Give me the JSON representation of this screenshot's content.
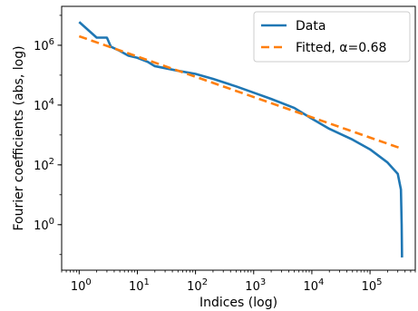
{
  "chart_data": {
    "type": "line",
    "xlabel": "Indices (log)",
    "ylabel": "Fourier coefficients (abs, log)",
    "xscale": "log",
    "yscale": "log",
    "xlim": [
      0.5,
      600000
    ],
    "ylim": [
      0.03,
      20000000
    ],
    "grid": false,
    "legend_placement": "top-right",
    "x_ticks": [
      {
        "value": 1,
        "base": "10",
        "exp": "0"
      },
      {
        "value": 10,
        "base": "10",
        "exp": "1"
      },
      {
        "value": 100,
        "base": "10",
        "exp": "2"
      },
      {
        "value": 1000,
        "base": "10",
        "exp": "3"
      },
      {
        "value": 10000,
        "base": "10",
        "exp": "4"
      },
      {
        "value": 100000,
        "base": "10",
        "exp": "5"
      }
    ],
    "y_ticks": [
      {
        "value": 1,
        "base": "10",
        "exp": "0"
      },
      {
        "value": 100,
        "base": "10",
        "exp": "2"
      },
      {
        "value": 10000,
        "base": "10",
        "exp": "4"
      },
      {
        "value": 1000000,
        "base": "10",
        "exp": "6"
      }
    ],
    "series": [
      {
        "name": "Data",
        "color": "#1f77b4",
        "style": "solid",
        "points": [
          [
            1,
            6000000
          ],
          [
            2,
            1800000
          ],
          [
            3,
            1800000
          ],
          [
            3.5,
            900000
          ],
          [
            5,
            650000
          ],
          [
            7,
            450000
          ],
          [
            10,
            380000
          ],
          [
            15,
            280000
          ],
          [
            20,
            200000
          ],
          [
            50,
            140000
          ],
          [
            100,
            110000
          ],
          [
            200,
            75000
          ],
          [
            500,
            42000
          ],
          [
            1000,
            26000
          ],
          [
            2000,
            16000
          ],
          [
            5000,
            8000
          ],
          [
            10000,
            3500
          ],
          [
            20000,
            1600
          ],
          [
            50000,
            700
          ],
          [
            100000,
            330
          ],
          [
            200000,
            120
          ],
          [
            300000,
            50
          ],
          [
            340000,
            15
          ],
          [
            350000,
            1
          ],
          [
            355000,
            0.08
          ]
        ]
      },
      {
        "name": "Fitted, α=0.68",
        "color": "#ff7f0e",
        "style": "dashed",
        "points": [
          [
            1,
            2000000
          ],
          [
            350000,
            350
          ]
        ]
      }
    ]
  }
}
